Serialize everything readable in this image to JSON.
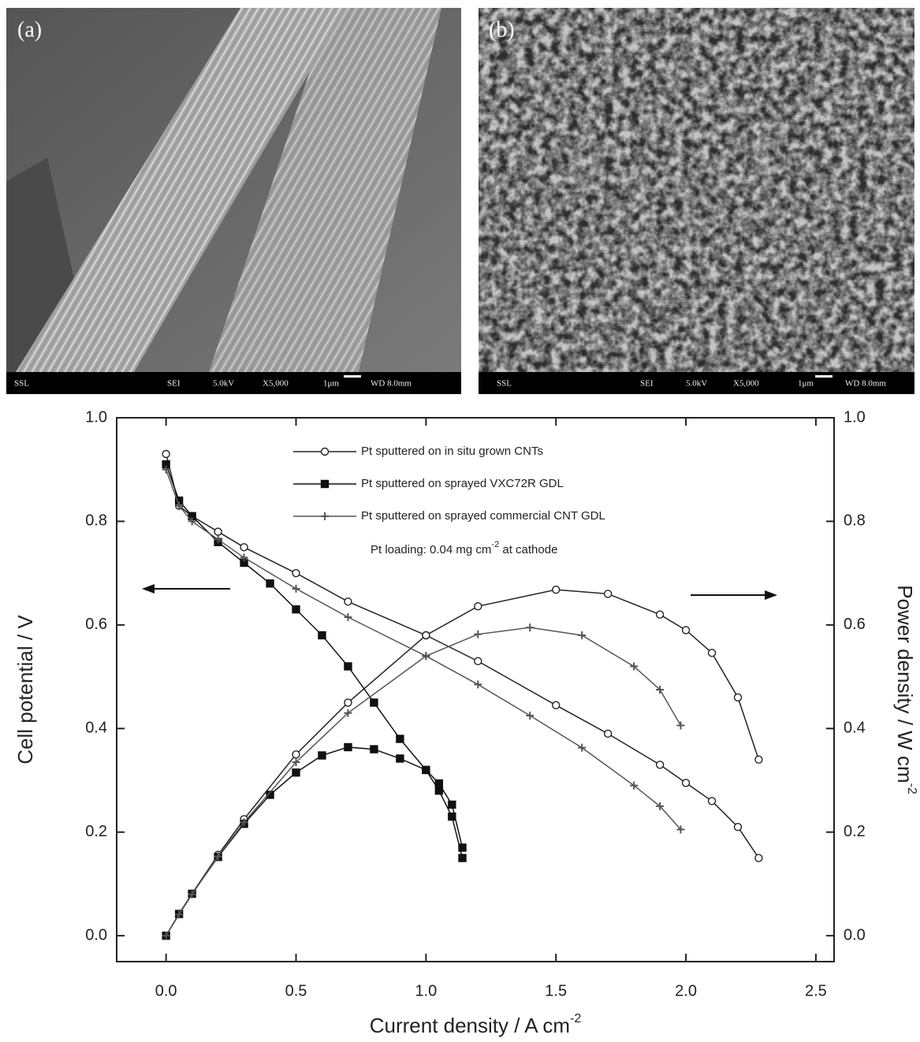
{
  "images": {
    "a": {
      "label": "(a)",
      "info": [
        "SSL",
        "SEI",
        "5.0kV",
        "X5,000",
        "1μm",
        "WD 8.0mm"
      ]
    },
    "b": {
      "label": "(b)",
      "info": [
        "SSL",
        "SEI",
        "5.0kV",
        "X5,000",
        "1μm",
        "WD 8.0mm"
      ]
    }
  },
  "chart_data": {
    "type": "line",
    "xlabel": [
      "Current density / A cm",
      "-2"
    ],
    "ylabel": "Cell potential / V",
    "y2label": [
      "Power density / W cm",
      "-2"
    ],
    "annotation": [
      "Pt loading: 0.04 mg cm",
      "-2",
      " at cathode"
    ],
    "xlim": [
      -0.19,
      2.57
    ],
    "ylim": [
      -0.05,
      1.0
    ],
    "y2lim": [
      -0.05,
      1.0
    ],
    "xticks": [
      {
        "value": 0,
        "label": "0.0"
      },
      0.5,
      {
        "value": 1,
        "label": "1.0"
      },
      1.5,
      {
        "value": 2,
        "label": "2.0"
      },
      2.5
    ],
    "yticks": [
      {
        "value": 0,
        "label": "0.0"
      },
      0.2,
      0.4,
      0.6,
      0.8,
      {
        "value": 1,
        "label": "1.0"
      }
    ],
    "y2ticks": [
      {
        "value": 0,
        "label": "0.0"
      },
      0.2,
      0.4,
      0.6,
      0.8,
      {
        "value": 1,
        "label": "1.0"
      }
    ],
    "series": [
      {
        "name": "Pt sputtered on in situ grown CNTs",
        "marker": "circle",
        "color": "#222",
        "x": [
          0,
          0.05,
          0.1,
          0.2,
          0.3,
          0.5,
          0.7,
          1.0,
          1.2,
          1.5,
          1.7,
          1.9,
          2.0,
          2.1,
          2.2,
          2.28
        ],
        "values": [
          0.93,
          0.83,
          0.81,
          0.78,
          0.75,
          0.7,
          0.645,
          0.58,
          0.53,
          0.445,
          0.39,
          0.33,
          0.295,
          0.26,
          0.21,
          0.15
        ],
        "power": [
          0,
          0.042,
          0.081,
          0.156,
          0.225,
          0.35,
          0.45,
          0.58,
          0.636,
          0.668,
          0.66,
          0.62,
          0.59,
          0.546,
          0.46,
          0.34
        ]
      },
      {
        "name": "Pt sputtered on sprayed VXC72R GDL",
        "marker": "square",
        "color": "#111",
        "x": [
          0,
          0.05,
          0.1,
          0.2,
          0.3,
          0.4,
          0.5,
          0.6,
          0.7,
          0.8,
          0.9,
          1.0,
          1.05,
          1.1,
          1.14
        ],
        "values": [
          0.91,
          0.84,
          0.81,
          0.76,
          0.72,
          0.68,
          0.63,
          0.58,
          0.52,
          0.45,
          0.38,
          0.32,
          0.28,
          0.23,
          0.15
        ],
        "power": [
          0,
          0.042,
          0.081,
          0.152,
          0.216,
          0.272,
          0.315,
          0.348,
          0.364,
          0.36,
          0.342,
          0.32,
          0.294,
          0.253,
          0.17
        ]
      },
      {
        "name": "Pt sputtered on sprayed commercial CNT GDL",
        "marker": "cross",
        "color": "#555",
        "x": [
          0,
          0.05,
          0.1,
          0.2,
          0.3,
          0.5,
          0.7,
          1.0,
          1.2,
          1.4,
          1.6,
          1.8,
          1.9,
          1.98
        ],
        "values": [
          0.9,
          0.83,
          0.8,
          0.765,
          0.73,
          0.67,
          0.615,
          0.54,
          0.485,
          0.425,
          0.363,
          0.29,
          0.25,
          0.205
        ],
        "power": [
          0,
          0.041,
          0.08,
          0.153,
          0.219,
          0.335,
          0.43,
          0.54,
          0.582,
          0.595,
          0.58,
          0.52,
          0.475,
          0.406
        ]
      }
    ]
  }
}
